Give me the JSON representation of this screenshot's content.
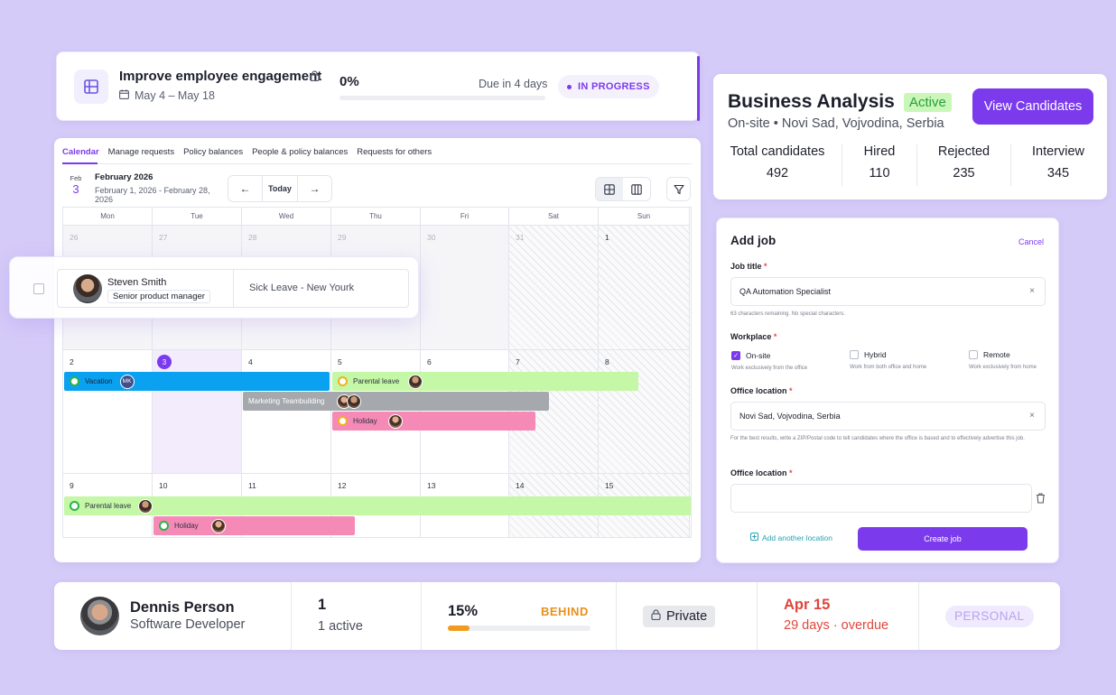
{
  "goal": {
    "title": "Improve employee engagement",
    "date_range": "May 4 – May 18",
    "progress_label": "0%",
    "progress": 0,
    "due": "Due in 4 days",
    "status": "IN PROGRESS",
    "icons": [
      "grid-icon",
      "lock-icon",
      "calendar-icon"
    ]
  },
  "business": {
    "title": "Business Analysis",
    "badge": "Active",
    "subtitle": "On-site • Novi Sad, Vojvodina, Serbia",
    "button": "View Candidates",
    "stats": [
      {
        "label": "Total candidates",
        "value": "492"
      },
      {
        "label": "Hired",
        "value": "110"
      },
      {
        "label": "Rejected",
        "value": "235"
      },
      {
        "label": "Interview",
        "value": "345"
      }
    ]
  },
  "calendar": {
    "tabs": [
      "Calendar",
      "Manage requests",
      "Policy balances",
      "People & policy balances",
      "Requests for others"
    ],
    "date_month": "Feb",
    "date_day": "3",
    "month_title": "February 2026",
    "range": "February 1, 2026 - February 28, 2026",
    "today_label": "Today",
    "prev_glyph": "←",
    "next_glyph": "→",
    "weekdays": [
      "Mon",
      "Tue",
      "Wed",
      "Thu",
      "Fri",
      "Sat",
      "Sun"
    ],
    "week1": [
      "26",
      "27",
      "28",
      "29",
      "30",
      "31",
      "1"
    ],
    "week2": [
      "2",
      "3",
      "4",
      "5",
      "6",
      "7",
      "8"
    ],
    "week3": [
      "9",
      "10",
      "11",
      "12",
      "13",
      "14",
      "15"
    ],
    "events": {
      "vacation": "Vacation",
      "vacation_initials": "MK",
      "parental1": "Parental leave",
      "teambuilding": "Marketing Teambuilding",
      "holiday1": "Holiday",
      "parental2": "Parental leave",
      "holiday2": "Holiday"
    },
    "colors": {
      "vacation": "#0aa2f0",
      "parental": "#c4f7a6",
      "team": "#a5a8ad",
      "holiday": "#f58ab6"
    }
  },
  "request_popup": {
    "name": "Steven Smith",
    "role": "Senior product manager",
    "leave": "Sick Leave - New Yourk"
  },
  "add_job": {
    "title": "Add job",
    "cancel": "Cancel",
    "job_title_label": "Job title",
    "job_title_value": "QA Automation Specialist",
    "job_title_hint": "63 characters remaining. No special characters.",
    "workplace_label": "Workplace",
    "workplace_options": [
      {
        "label": "On-site",
        "hint": "Work exclusively from the office",
        "checked": true
      },
      {
        "label": "Hybrid",
        "hint": "Work from both office and home",
        "checked": false
      },
      {
        "label": "Remote",
        "hint": "Work exclusively from home",
        "checked": false
      }
    ],
    "office_label": "Office location",
    "office_value": "Novi Sad, Vojvodina, Serbia",
    "office_hint": "For the best results, write a ZIP/Postal code to tell candidates where the office is based and to effectively advertise this job.",
    "office_label2": "Office location",
    "office_value2": "",
    "add_location": "Add another location",
    "create": "Create job",
    "required_mark": "*",
    "clear_glyph": "×"
  },
  "person_row": {
    "name": "Dennis Person",
    "role": "Software Developer",
    "count": "1",
    "count_sub": "1 active",
    "progress_label": "15%",
    "progress": 0.15,
    "progress_status": "BEHIND",
    "visibility": "Private",
    "due_date": "Apr 15",
    "due_sub": "29 days · overdue",
    "tag": "PERSONAL"
  }
}
